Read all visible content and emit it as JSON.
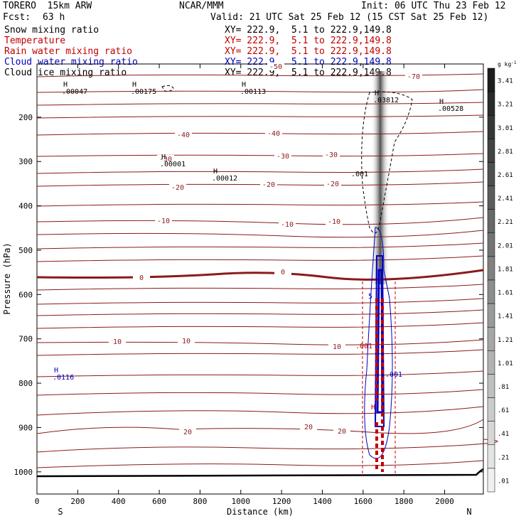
{
  "header": {
    "model": "TORERO  15km ARW",
    "center": "NCAR/MMM",
    "init": "Init: 06 UTC Thu 23 Feb 12",
    "fcst_label": "Fcst:",
    "fcst_value": "63 h",
    "valid": "Valid: 21 UTC Sat 25 Feb 12 (15 CST Sat 25 Feb 12)"
  },
  "legend": [
    {
      "field": "Snow mixing ratio",
      "xy": "XY= 222.9,  5.1 to 222.9,149.8",
      "color": "#000000"
    },
    {
      "field": "Temperature",
      "xy": "XY= 222.9,  5.1 to 222.9,149.8",
      "color": "#c00000"
    },
    {
      "field": "Rain water mixing ratio",
      "xy": "XY= 222.9,  5.1 to 222.9,149.8",
      "color": "#c00000"
    },
    {
      "field": "Cloud water mixing ratio",
      "xy": "XY= 222.9,  5.1 to 222.9,149.8",
      "color": "#0000c0"
    },
    {
      "field": "Cloud ice mixing ratio",
      "xy": "XY= 222.9,  5.1 to 222.9,149.8",
      "color": "#000000"
    }
  ],
  "chart_data": {
    "type": "contour-cross-section",
    "xlabel": "Distance (km)",
    "ylabel": "Pressure (hPa)",
    "xlim": [
      0,
      2190
    ],
    "ylim": [
      1050,
      80
    ],
    "x_ticks": [
      "0",
      "200",
      "400",
      "600",
      "800",
      "1000",
      "1200",
      "1400",
      "1600",
      "1800",
      "2000"
    ],
    "y_ticks": [
      "200",
      "300",
      "400",
      "500",
      "600",
      "700",
      "800",
      "900",
      "1000"
    ],
    "x_end_labels": {
      "left": "S",
      "right": "N"
    },
    "colorbar": {
      "unit": "g kg",
      "unit_exp": "-1",
      "labels": [
        "3.41",
        "3.21",
        "3.01",
        "2.81",
        "2.61",
        "2.41",
        "2.21",
        "2.01",
        "1.81",
        "1.61",
        "1.41",
        "1.21",
        "1.01",
        ".81",
        ".61",
        ".41",
        ".21",
        ".01"
      ]
    },
    "temperature_labels": [
      "-70",
      "-50",
      "-40",
      "-40",
      "-30",
      "-30",
      "-30",
      "-20",
      "-20",
      "-20",
      "-10",
      "-10",
      "-10",
      "0",
      "0",
      "10",
      "10",
      "10",
      "20",
      "20",
      "20"
    ],
    "extrema_labels": [
      {
        "mark": "H",
        "value": ".00047"
      },
      {
        "mark": "H",
        "value": ".00175"
      },
      {
        "mark": "H",
        "value": ".00113"
      },
      {
        "mark": "H",
        "value": ".03812"
      },
      {
        "mark": "H",
        "value": ".00528"
      },
      {
        "mark": "H",
        "value": ".00001"
      },
      {
        "mark": "H",
        "value": ".00012"
      },
      {
        "mark": "H",
        "value": ".0116"
      }
    ],
    "contour_labels": [
      ".001",
      ".001",
      ".001",
      "5",
      "H"
    ]
  }
}
